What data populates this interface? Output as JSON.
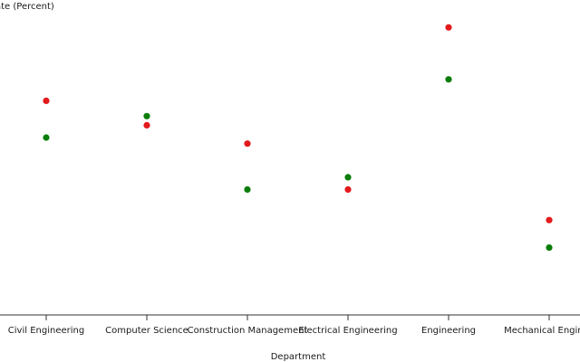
{
  "chart_data": {
    "type": "scatter",
    "title": "",
    "ylabel": "ate (Percent)",
    "xlabel": "Department",
    "categories": [
      "Civil Engineering",
      "Computer Science",
      "Construction Management",
      "Electrical Engineering",
      "Engineering",
      "Mechanical Enginee"
    ],
    "ylim": [
      0,
      100
    ],
    "grid": false,
    "legend": "none",
    "series": [
      {
        "color": "#e31a1c",
        "values": [
          70,
          62,
          56,
          41,
          94,
          31
        ]
      },
      {
        "color": "#0b7d0b",
        "values": [
          58,
          65,
          41,
          45,
          77,
          22
        ]
      }
    ]
  }
}
